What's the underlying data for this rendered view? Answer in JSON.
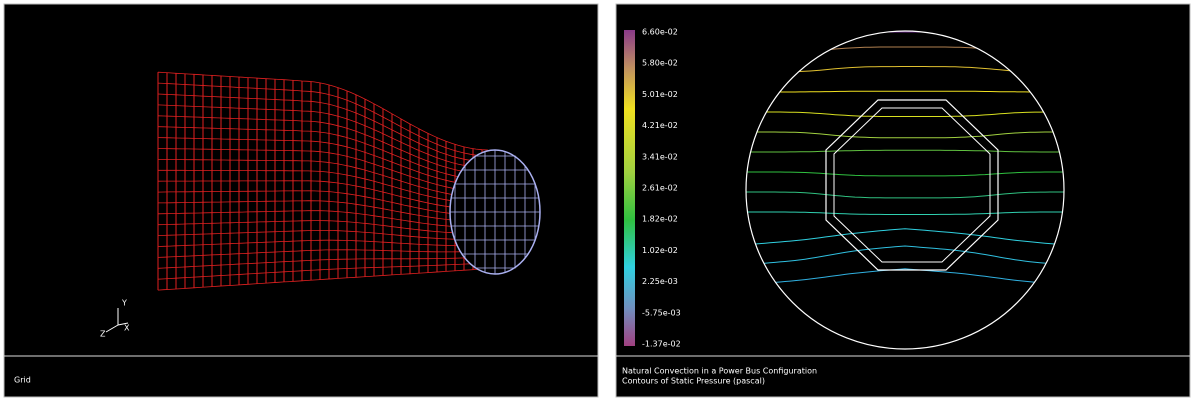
{
  "left_panel": {
    "triad": {
      "y": "Y",
      "x": "X",
      "z": "Z"
    },
    "caption": "Grid"
  },
  "right_panel": {
    "colorbar": {
      "labels": [
        "6.60e-02",
        "5.80e-02",
        "5.01e-02",
        "4.21e-02",
        "3.41e-02",
        "2.61e-02",
        "1.82e-02",
        "1.02e-02",
        "2.25e-03",
        "-5.75e-03",
        "-1.37e-02"
      ]
    },
    "caption": [
      "Natural Convection in a Power Bus Configuration",
      "Contours of Static Pressure (pascal)"
    ]
  }
}
